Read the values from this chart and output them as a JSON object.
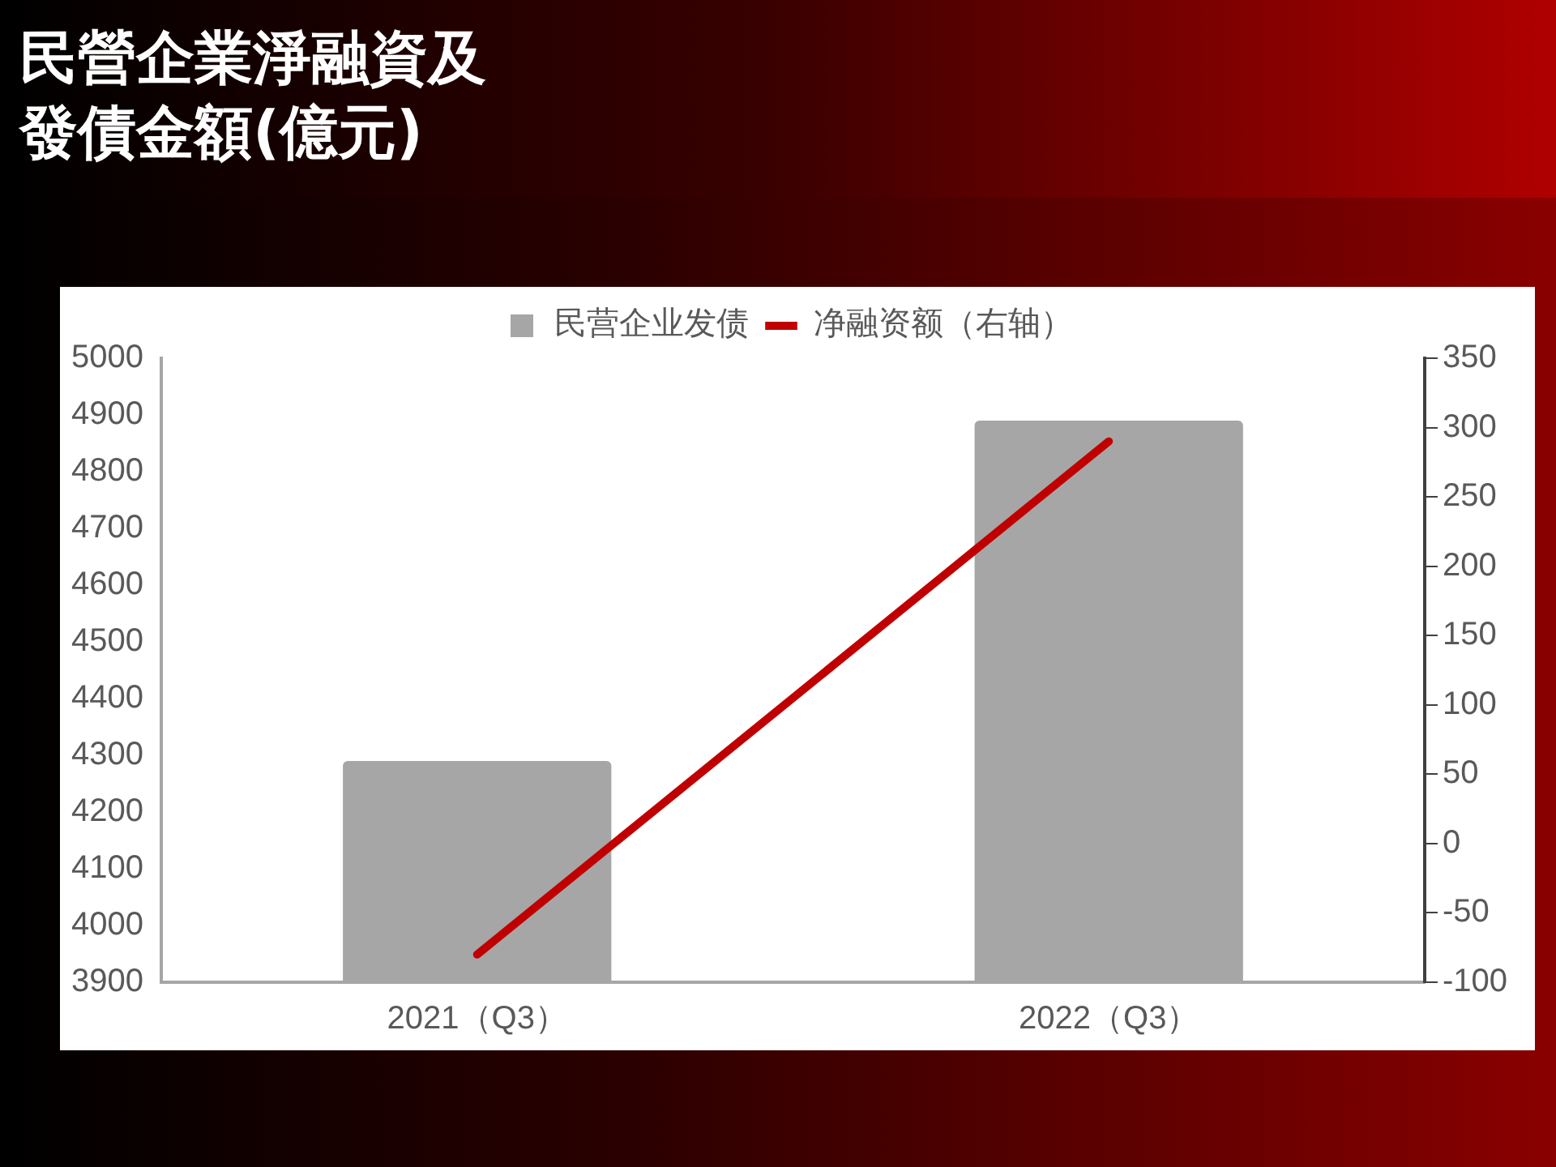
{
  "chart_data": {
    "type": "bar",
    "title": "民營企業淨融資及發債金額(億元)",
    "categories": [
      "2021（Q3）",
      "2022（Q3）"
    ],
    "series": [
      {
        "name": "民营企业发债",
        "color": "#a6a6a6",
        "values": [
          4290,
          4890
        ]
      },
      {
        "name": "净融资额（右轴）",
        "type": "line",
        "axis": "y2",
        "color": "#c00000",
        "values": [
          -80,
          290
        ]
      }
    ],
    "ylim": [
      3900,
      5000
    ],
    "yticks": [
      3900,
      4000,
      4100,
      4200,
      4300,
      4400,
      4500,
      4600,
      4700,
      4800,
      4900,
      5000
    ],
    "y2lim": [
      -100,
      350
    ],
    "y2ticks": [
      -100,
      -50,
      0,
      50,
      100,
      150,
      200,
      250,
      300,
      350
    ],
    "legend": "top",
    "marker": "none"
  }
}
